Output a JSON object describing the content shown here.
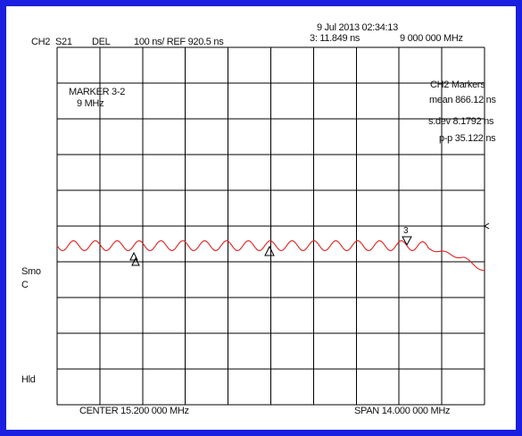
{
  "header": {
    "channel": "CH2",
    "param": "S21",
    "format": "DEL",
    "scale_ref": "100 ns/  REF 920.5 ns",
    "datetime": "9 Jul 2013  02:34:13",
    "marker_value": "3:  11.849 ns",
    "marker_freq": "9 000 000 MHz"
  },
  "marker_box": {
    "title": "MARKER 3-2",
    "freq": "9 MHz"
  },
  "stats": {
    "title": "CH2 Markers",
    "mean": "mean  866.12 ns",
    "sdev": "s.dev  8.1792 ns",
    "pp": "p-p  35.122 ns"
  },
  "side": {
    "smo": "Smo",
    "c": "C",
    "hld": "Hld"
  },
  "footer": {
    "center": "CENTER 15.200 000 MHz",
    "span": "SPAN  14.000 000 MHz"
  },
  "markers": [
    {
      "label": "1",
      "kind": "delta"
    },
    {
      "label": "2",
      "kind": "delta"
    },
    {
      "label": "3",
      "kind": "active"
    }
  ],
  "colors": {
    "border": "#1a1fe0",
    "trace": "#e02020",
    "grid": "#000000"
  }
}
